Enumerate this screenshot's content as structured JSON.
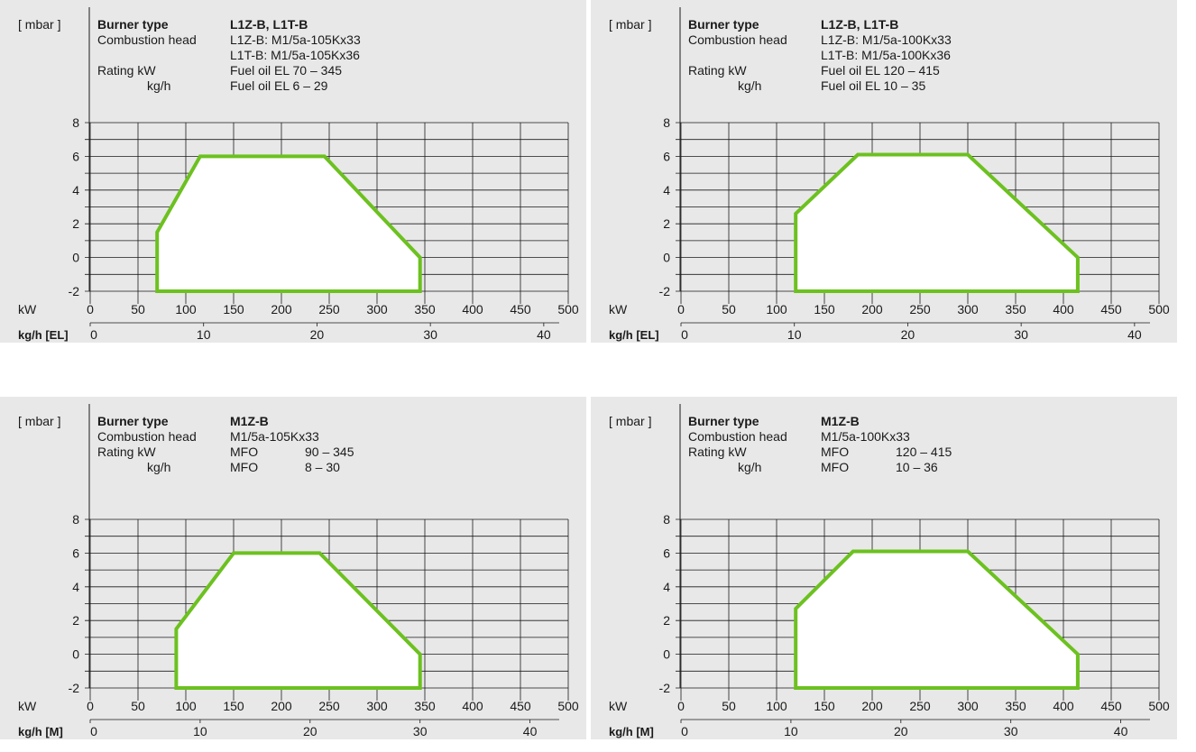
{
  "colors": {
    "background": "#e8e8e8",
    "envelope": "#6cc11f",
    "fill": "#ffffff",
    "grid": "#1a1a1a"
  },
  "charts": [
    {
      "unit_label": "[ mbar ]",
      "info": {
        "rows": [
          {
            "label": "Burner type",
            "value": "L1Z-B, L1T-B",
            "bold": true
          },
          {
            "label": "Combustion head",
            "value": "L1Z-B: M1/5a-105Kx33"
          },
          {
            "label": "",
            "value": "L1T-B: M1/5a-105Kx36"
          },
          {
            "label": "Rating kW",
            "value": "Fuel oil EL 70 – 345"
          },
          {
            "label": "kg/h",
            "value": "Fuel oil EL 6 – 29",
            "indent": true
          }
        ]
      },
      "x_axis_label": "kW",
      "x2_axis_label": "kg/h [EL]",
      "x_ticks": [
        "0",
        "50",
        "100",
        "150",
        "200",
        "250",
        "300",
        "350",
        "400",
        "450",
        "500"
      ],
      "y_ticks": [
        "8",
        "6",
        "4",
        "2",
        "0",
        "-2"
      ],
      "x2_ticks": [
        "0",
        "10",
        "20",
        "30",
        "40"
      ]
    },
    {
      "unit_label": "[ mbar ]",
      "info": {
        "rows": [
          {
            "label": "Burner type",
            "value": "L1Z-B, L1T-B",
            "bold": true
          },
          {
            "label": "Combustion head",
            "value": "L1Z-B: M1/5a-100Kx33"
          },
          {
            "label": "",
            "value": "L1T-B: M1/5a-100Kx36"
          },
          {
            "label": "Rating kW",
            "value": "Fuel oil EL 120 – 415"
          },
          {
            "label": "kg/h",
            "value": "Fuel oil EL 10 – 35",
            "indent": true
          }
        ]
      },
      "x_axis_label": "kW",
      "x2_axis_label": "kg/h [EL]",
      "x_ticks": [
        "0",
        "50",
        "100",
        "150",
        "200",
        "250",
        "300",
        "350",
        "400",
        "450",
        "500"
      ],
      "y_ticks": [
        "8",
        "6",
        "4",
        "2",
        "0",
        "-2"
      ],
      "x2_ticks": [
        "0",
        "10",
        "20",
        "30",
        "40"
      ]
    },
    {
      "unit_label": "[ mbar ]",
      "info": {
        "rows": [
          {
            "label": "Burner type",
            "value": "M1Z-B",
            "bold": true
          },
          {
            "label": "Combustion head",
            "value": "M1/5a-105Kx33"
          },
          {
            "label": "Rating kW",
            "value": "MFO",
            "value2": "90 – 345"
          },
          {
            "label": "kg/h",
            "value": "MFO",
            "value2": "8 – 30",
            "indent": true
          }
        ]
      },
      "x_axis_label": "kW",
      "x2_axis_label": "kg/h [M]",
      "x_ticks": [
        "0",
        "50",
        "100",
        "150",
        "200",
        "250",
        "300",
        "350",
        "400",
        "450",
        "500"
      ],
      "y_ticks": [
        "8",
        "6",
        "4",
        "2",
        "0",
        "-2"
      ],
      "x2_ticks": [
        "0",
        "10",
        "20",
        "30",
        "40"
      ]
    },
    {
      "unit_label": "[ mbar ]",
      "info": {
        "rows": [
          {
            "label": "Burner type",
            "value": "M1Z-B",
            "bold": true
          },
          {
            "label": "Combustion head",
            "value": "M1/5a-100Kx33"
          },
          {
            "label": "Rating kW",
            "value": "MFO",
            "value2": "120 – 415"
          },
          {
            "label": "kg/h",
            "value": "MFO",
            "value2": "10 – 36",
            "indent": true
          }
        ]
      },
      "x_axis_label": "kW",
      "x2_axis_label": "kg/h [M]",
      "x_ticks": [
        "0",
        "50",
        "100",
        "150",
        "200",
        "250",
        "300",
        "350",
        "400",
        "450",
        "500"
      ],
      "y_ticks": [
        "8",
        "6",
        "4",
        "2",
        "0",
        "-2"
      ],
      "x2_ticks": [
        "0",
        "10",
        "20",
        "30",
        "40"
      ]
    }
  ],
  "chart_data": [
    {
      "type": "area",
      "title": "",
      "xlabel": "kW",
      "ylabel": "[ mbar ]",
      "xlim": [
        0,
        500
      ],
      "ylim": [
        -2,
        8
      ],
      "secondary_x": {
        "label": "kg/h [EL]",
        "ticks": [
          0,
          10,
          20,
          30,
          40
        ],
        "kw_per_kgh": 11.86
      },
      "grid": true,
      "series": [
        {
          "values": [
            [
              70,
              -2
            ],
            [
              70,
              1.5
            ],
            [
              115,
              6
            ],
            [
              245,
              6
            ],
            [
              345,
              0
            ],
            [
              345,
              -2
            ]
          ]
        }
      ]
    },
    {
      "type": "area",
      "title": "",
      "xlabel": "kW",
      "ylabel": "[ mbar ]",
      "xlim": [
        0,
        500
      ],
      "ylim": [
        -2,
        8
      ],
      "secondary_x": {
        "label": "kg/h [EL]",
        "ticks": [
          0,
          10,
          20,
          30,
          40
        ],
        "kw_per_kgh": 11.86
      },
      "grid": true,
      "series": [
        {
          "values": [
            [
              120,
              -2
            ],
            [
              120,
              2.6
            ],
            [
              185,
              6.1
            ],
            [
              300,
              6.1
            ],
            [
              415,
              0
            ],
            [
              415,
              -2
            ]
          ]
        }
      ]
    },
    {
      "type": "area",
      "title": "",
      "xlabel": "kW",
      "ylabel": "[ mbar ]",
      "xlim": [
        0,
        500
      ],
      "ylim": [
        -2,
        8
      ],
      "secondary_x": {
        "label": "kg/h [M]",
        "ticks": [
          0,
          10,
          20,
          30,
          40
        ],
        "kw_per_kgh": 11.5
      },
      "grid": true,
      "series": [
        {
          "values": [
            [
              90,
              -2
            ],
            [
              90,
              1.5
            ],
            [
              150,
              6
            ],
            [
              240,
              6
            ],
            [
              345,
              0
            ],
            [
              345,
              -2
            ]
          ]
        }
      ]
    },
    {
      "type": "area",
      "title": "",
      "xlabel": "kW",
      "ylabel": "[ mbar ]",
      "xlim": [
        0,
        500
      ],
      "ylim": [
        -2,
        8
      ],
      "secondary_x": {
        "label": "kg/h [M]",
        "ticks": [
          0,
          10,
          20,
          30,
          40
        ],
        "kw_per_kgh": 11.5
      },
      "grid": true,
      "series": [
        {
          "values": [
            [
              120,
              -2
            ],
            [
              120,
              2.7
            ],
            [
              180,
              6.1
            ],
            [
              300,
              6.1
            ],
            [
              415,
              0
            ],
            [
              415,
              -2
            ]
          ]
        }
      ]
    }
  ]
}
